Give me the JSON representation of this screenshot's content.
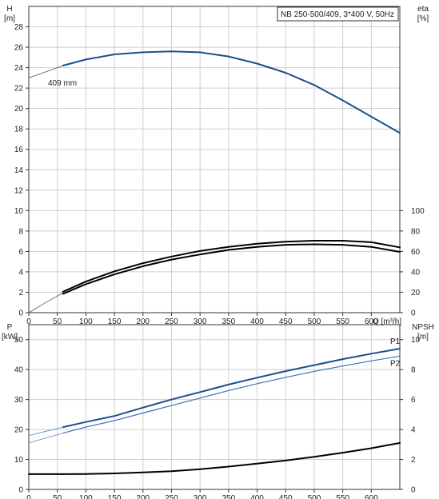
{
  "chart_data": [
    {
      "type": "line",
      "title": "NB 250-500/409, 3*400 V, 50Hz",
      "xlabel": "Q [m³/h]",
      "xlim": [
        0,
        650
      ],
      "x_ticks": [
        "0",
        "50",
        "100",
        "150",
        "200",
        "250",
        "300",
        "350",
        "400",
        "450",
        "500",
        "550",
        "600"
      ],
      "y_left": {
        "label_top": "H",
        "label_unit": "[m]",
        "lim": [
          0,
          30
        ],
        "ticks": [
          "0",
          "2",
          "4",
          "6",
          "8",
          "10",
          "12",
          "14",
          "16",
          "18",
          "20",
          "22",
          "24",
          "26",
          "28"
        ]
      },
      "y_right": {
        "label_top": "eta",
        "label_unit": "[%]",
        "lim": [
          0,
          100
        ],
        "ticks": [
          "0",
          "20",
          "40",
          "60",
          "80",
          "100"
        ]
      },
      "annotation": "409 mm",
      "series": [
        {
          "axis": "H",
          "color": "#1a4f8c",
          "x": [
            60,
            100,
            150,
            200,
            250,
            300,
            350,
            400,
            450,
            500,
            550,
            600,
            650
          ],
          "y": [
            24.2,
            24.8,
            25.3,
            25.5,
            25.6,
            25.5,
            25.1,
            24.4,
            23.5,
            22.3,
            20.8,
            19.2,
            17.6
          ]
        },
        {
          "axis": "H",
          "color": "#555555",
          "dash": true,
          "x": [
            0,
            20,
            40,
            60
          ],
          "y": [
            23.0,
            23.4,
            23.8,
            24.2
          ]
        },
        {
          "axis": "eta",
          "color": "#000000",
          "x": [
            60,
            100,
            150,
            200,
            250,
            300,
            350,
            400,
            450,
            500,
            550,
            600,
            650
          ],
          "y": [
            18.5,
            28,
            37.5,
            45.5,
            52,
            57,
            61.5,
            64.5,
            66.5,
            67,
            66.5,
            64.5,
            59.5
          ]
        },
        {
          "axis": "eta",
          "color": "#000000",
          "x": [
            60,
            100,
            150,
            200,
            250,
            300,
            350,
            400,
            450,
            500,
            550,
            600,
            650
          ],
          "y": [
            20.5,
            30.5,
            40.5,
            48.5,
            55,
            60.5,
            64.5,
            67.5,
            69.5,
            70.5,
            70.5,
            69,
            64
          ]
        },
        {
          "axis": "eta",
          "color": "#555555",
          "dash": true,
          "x": [
            0,
            30,
            60
          ],
          "y": [
            0,
            10,
            19.5
          ]
        }
      ]
    },
    {
      "type": "line",
      "x_ticks": [
        "0",
        "50",
        "100",
        "150",
        "200",
        "250",
        "300",
        "350",
        "400",
        "450",
        "500",
        "550",
        "600"
      ],
      "xlim": [
        0,
        650
      ],
      "y_left": {
        "label_top": "P",
        "label_unit": "[kW]",
        "lim": [
          0,
          55
        ],
        "ticks": [
          "0",
          "10",
          "20",
          "30",
          "40",
          "50"
        ]
      },
      "y_right": {
        "label_top": "NPSH",
        "label_unit": "[m]",
        "lim": [
          0,
          11
        ],
        "ticks": [
          "0",
          "2",
          "4",
          "6",
          "8",
          "10"
        ]
      },
      "series": [
        {
          "name": "P1",
          "axis": "P",
          "color": "#1a4f8c",
          "x": [
            60,
            100,
            150,
            200,
            250,
            300,
            350,
            400,
            450,
            500,
            550,
            600,
            650
          ],
          "y": [
            20.8,
            22.5,
            24.5,
            27.3,
            30.0,
            32.5,
            35.0,
            37.3,
            39.5,
            41.5,
            43.5,
            45.3,
            47.0
          ]
        },
        {
          "name": "P2",
          "axis": "P",
          "color": "#3a72b8",
          "x": [
            60,
            100,
            150,
            200,
            250,
            300,
            350,
            400,
            450,
            500,
            550,
            600,
            650
          ],
          "y": [
            18.8,
            20.8,
            23.0,
            25.5,
            28.0,
            30.5,
            33.0,
            35.3,
            37.4,
            39.4,
            41.2,
            42.9,
            44.5
          ]
        },
        {
          "axis": "P",
          "color": "#5a86c0",
          "dash": true,
          "x": [
            0,
            30,
            60
          ],
          "y": [
            18.0,
            19.4,
            20.8
          ]
        },
        {
          "axis": "P",
          "color": "#5a86c0",
          "dash": true,
          "x": [
            0,
            30,
            60
          ],
          "y": [
            15.5,
            17.2,
            18.8
          ]
        },
        {
          "axis": "NPSH",
          "color": "#000000",
          "x": [
            60,
            100,
            150,
            200,
            250,
            300,
            350,
            400,
            450,
            500,
            550,
            600,
            650
          ],
          "y": [
            1.02,
            1.03,
            1.07,
            1.13,
            1.22,
            1.35,
            1.52,
            1.72,
            1.93,
            2.18,
            2.45,
            2.75,
            3.1
          ]
        },
        {
          "axis": "NPSH",
          "color": "#000000",
          "x": [
            0,
            60
          ],
          "y": [
            1.02,
            1.02
          ]
        }
      ]
    }
  ]
}
